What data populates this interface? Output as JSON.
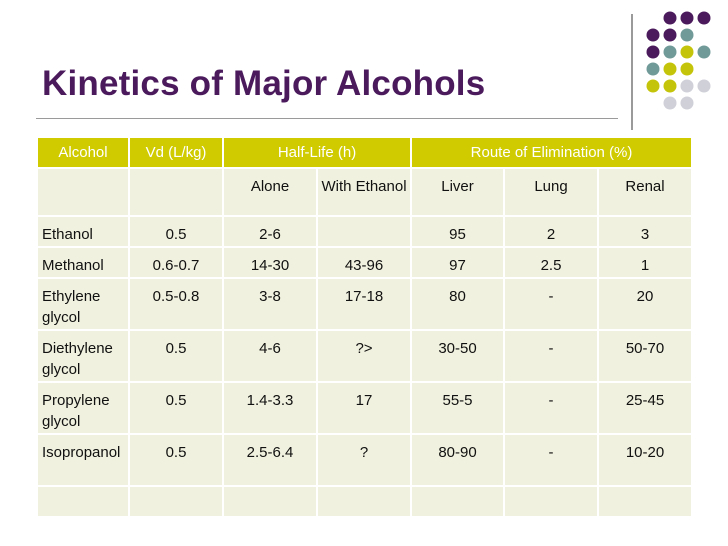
{
  "title": "Kinetics of Major Alcohols",
  "colors": {
    "title": "#4a1a5c",
    "header_bg": "#cfcb00",
    "cell_bg": "#f1f1df",
    "dot_purple": "#4a1a5c",
    "dot_teal": "#6f9a98",
    "dot_olive": "#c4c40a",
    "dot_gray": "#cfd0d8"
  },
  "table": {
    "headers": {
      "alcohol": "Alcohol",
      "vd": "Vd (L/kg)",
      "halflife": "Half-Life (h)",
      "route": "Route of Elimination (%)"
    },
    "subheaders": {
      "alone": "Alone",
      "with_ethanol": "With Ethanol",
      "liver": "Liver",
      "lung": "Lung",
      "renal": "Renal"
    },
    "rows": [
      {
        "alcohol": "Ethanol",
        "vd": "0.5",
        "alone": "2-6",
        "with_ethanol": "",
        "liver": "95",
        "lung": "2",
        "renal": "3"
      },
      {
        "alcohol": "Methanol",
        "vd": "0.6-0.7",
        "alone": "14-30",
        "with_ethanol": "43-96",
        "liver": "97",
        "lung": "2.5",
        "renal": "1"
      },
      {
        "alcohol": "Ethylene glycol",
        "vd": "0.5-0.8",
        "alone": "3-8",
        "with_ethanol": "17-18",
        "liver": "80",
        "lung": "-",
        "renal": "20"
      },
      {
        "alcohol": "Diethylene glycol",
        "vd": "0.5",
        "alone": "4-6",
        "with_ethanol": "?>",
        "liver": "30-50",
        "lung": "-",
        "renal": "50-70"
      },
      {
        "alcohol": "Propylene glycol",
        "vd": "0.5",
        "alone": "1.4-3.3",
        "with_ethanol": "17",
        "liver": "55-5",
        "lung": "-",
        "renal": "25-45"
      },
      {
        "alcohol": "Isopropanol",
        "vd": "0.5",
        "alone": "2.5-6.4",
        "with_ethanol": "?",
        "liver": "80-90",
        "lung": "-",
        "renal": "10-20"
      }
    ]
  }
}
